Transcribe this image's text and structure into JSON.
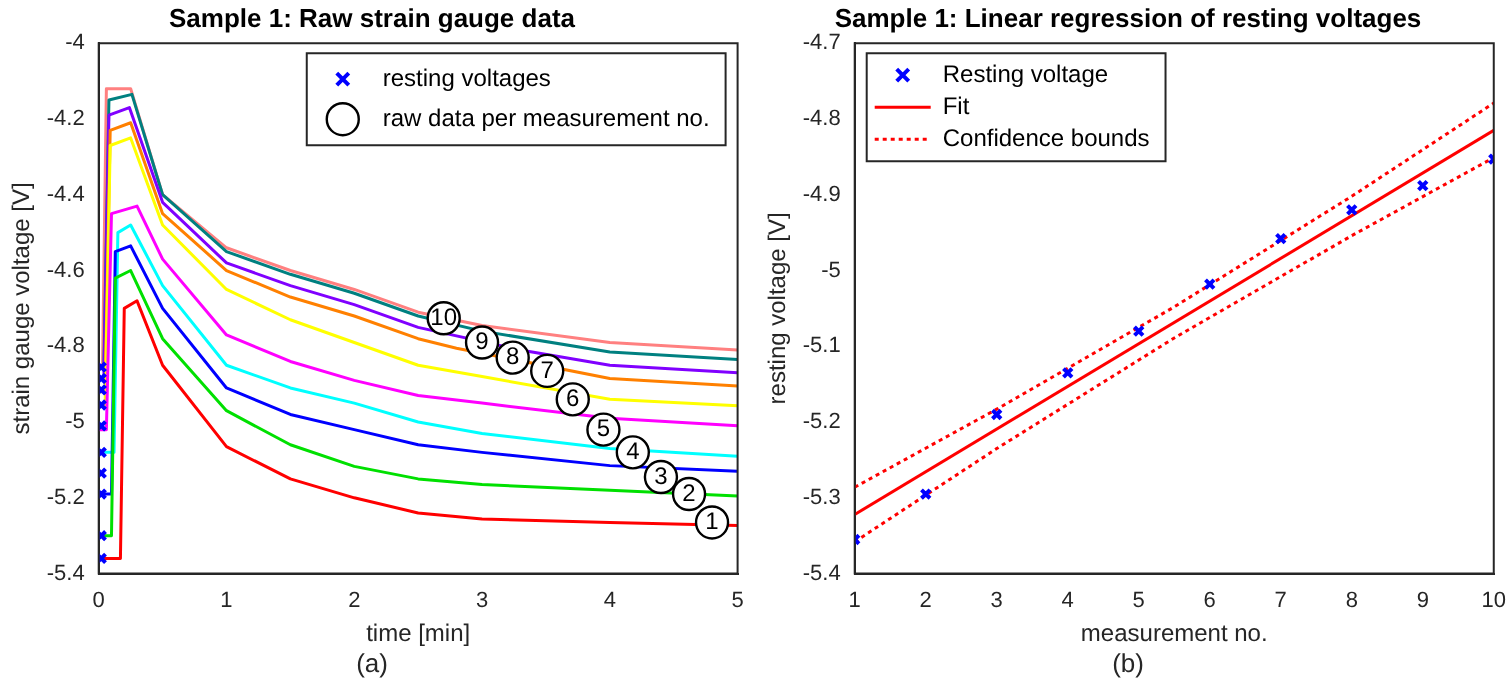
{
  "chart_data": [
    {
      "type": "line",
      "title": "Sample 1: Raw strain gauge data",
      "xlabel": "time [min]",
      "ylabel": "strain gauge voltage [V]",
      "xlim": [
        0,
        5
      ],
      "xticks": [
        0,
        1,
        2,
        3,
        4,
        5
      ],
      "ylim": [
        -5.4,
        -4
      ],
      "yticks": [
        -5.4,
        -5.2,
        -5,
        -4.8,
        -4.6,
        -4.4,
        -4.2,
        -4
      ],
      "grid": false,
      "legend": "top right",
      "series": [
        {
          "color": "#ff0000",
          "marker": "none",
          "x": [
            0,
            0.17,
            0.2,
            0.3,
            0.5,
            1,
            1.5,
            2,
            2.5,
            3,
            4,
            5
          ],
          "values": [
            -5.36,
            -5.36,
            -4.7,
            -4.68,
            -4.85,
            -5.065,
            -5.15,
            -5.2,
            -5.24,
            -5.256,
            -5.265,
            -5.273
          ]
        },
        {
          "color": "#00e000",
          "marker": "none",
          "x": [
            0,
            0.1,
            0.13,
            0.25,
            0.5,
            1,
            1.5,
            2,
            2.5,
            3,
            4,
            5
          ],
          "values": [
            -5.3,
            -5.3,
            -4.62,
            -4.6,
            -4.78,
            -4.97,
            -5.06,
            -5.117,
            -5.15,
            -5.165,
            -5.18,
            -5.195
          ]
        },
        {
          "color": "#0000ff",
          "marker": "none",
          "x": [
            0,
            0.1,
            0.13,
            0.25,
            0.5,
            1,
            1.5,
            2,
            2.5,
            3,
            4,
            5
          ],
          "values": [
            -5.19,
            -5.19,
            -4.55,
            -4.535,
            -4.7,
            -4.91,
            -4.98,
            -5.02,
            -5.06,
            -5.08,
            -5.115,
            -5.13
          ]
        },
        {
          "color": "#00ffff",
          "marker": "none",
          "x": [
            0,
            0.12,
            0.15,
            0.25,
            0.5,
            1,
            1.5,
            2,
            2.5,
            3,
            4,
            5
          ],
          "values": [
            -5.08,
            -5.08,
            -4.5,
            -4.48,
            -4.64,
            -4.85,
            -4.91,
            -4.95,
            -5,
            -5.03,
            -5.07,
            -5.09
          ]
        },
        {
          "color": "#ff00ff",
          "marker": "none",
          "x": [
            0,
            0.06,
            0.1,
            0.3,
            0.5,
            1,
            1.5,
            2,
            2.5,
            3,
            4,
            5
          ],
          "values": [
            -5.02,
            -5.02,
            -4.45,
            -4.43,
            -4.57,
            -4.77,
            -4.84,
            -4.89,
            -4.93,
            -4.95,
            -4.99,
            -5.01
          ]
        },
        {
          "color": "#ffff00",
          "marker": "none",
          "x": [
            0.05,
            0.09,
            0.25,
            0.5,
            1,
            1.5,
            2,
            2.5,
            3,
            4,
            5
          ],
          "values": [
            -4.96,
            -4.27,
            -4.25,
            -4.48,
            -4.65,
            -4.73,
            -4.79,
            -4.85,
            -4.88,
            -4.94,
            -4.957
          ]
        },
        {
          "color": "#ff8000",
          "marker": "none",
          "x": [
            0,
            0.05,
            0.09,
            0.25,
            0.5,
            1,
            1.5,
            2,
            2.5,
            2.8,
            4,
            5
          ],
          "values": [
            -4.92,
            -4.92,
            -4.23,
            -4.21,
            -4.45,
            -4.6,
            -4.67,
            -4.72,
            -4.78,
            -4.805,
            -4.885,
            -4.905
          ]
        },
        {
          "color": "#8000ff",
          "marker": "none",
          "x": [
            0.04,
            0.08,
            0.24,
            0.5,
            1,
            1.5,
            2,
            2.5,
            3.3,
            4,
            5
          ],
          "values": [
            -4.89,
            -4.19,
            -4.17,
            -4.42,
            -4.58,
            -4.64,
            -4.69,
            -4.75,
            -4.81,
            -4.85,
            -4.87
          ]
        },
        {
          "color": "#008080",
          "marker": "none",
          "x": [
            0.04,
            0.08,
            0.26,
            0.5,
            1,
            1.5,
            2,
            2.5,
            3,
            4,
            5
          ],
          "values": [
            -4.86,
            -4.15,
            -4.135,
            -4.4,
            -4.55,
            -4.61,
            -4.66,
            -4.72,
            -4.76,
            -4.815,
            -4.835
          ]
        },
        {
          "color": "#ff8080",
          "marker": "none",
          "x": [
            0,
            0.03,
            0.06,
            0.25,
            0.5,
            1,
            1.5,
            2,
            2.5,
            3,
            4,
            5
          ],
          "values": [
            -4.85,
            -4.85,
            -4.12,
            -4.12,
            -4.4,
            -4.54,
            -4.6,
            -4.65,
            -4.71,
            -4.745,
            -4.79,
            -4.81
          ]
        },
        {
          "type": "scatter",
          "name": "resting voltages",
          "color": "#0000ff",
          "marker": "cross",
          "x": [
            0.02,
            0.02,
            0.02,
            0.02,
            0.02,
            0.02,
            0.02,
            0.02,
            0.02,
            0.02
          ],
          "values": [
            -5.36,
            -5.3,
            -5.19,
            -5.135,
            -5.08,
            -5.01,
            -4.955,
            -4.915,
            -4.885,
            -4.855
          ]
        },
        {
          "type": "scatter",
          "name": "raw data per measurement no.",
          "color": "#000000",
          "marker": "circle",
          "x": [
            4.8,
            4.62,
            4.4,
            4.18,
            3.95,
            3.71,
            3.51,
            3.24,
            3,
            2.7
          ],
          "values": [
            -5.265,
            -5.19,
            -5.145,
            -5.08,
            -5.02,
            -4.94,
            -4.865,
            -4.83,
            -4.79,
            -4.726
          ]
        }
      ],
      "annotations": [
        "(a)",
        {
          "text": "1",
          "x": 4.8,
          "y": -5.265
        },
        {
          "text": "2",
          "x": 4.62,
          "y": -5.19
        },
        {
          "text": "3",
          "x": 4.4,
          "y": -5.145
        },
        {
          "text": "4",
          "x": 4.18,
          "y": -5.08
        },
        {
          "text": "5",
          "x": 3.95,
          "y": -5.02
        },
        {
          "text": "6",
          "x": 3.71,
          "y": -4.94
        },
        {
          "text": "7",
          "x": 3.51,
          "y": -4.865
        },
        {
          "text": "8",
          "x": 3.24,
          "y": -4.83
        },
        {
          "text": "9",
          "x": 3,
          "y": -4.79
        },
        {
          "text": "10",
          "x": 2.7,
          "y": -4.726
        }
      ]
    },
    {
      "type": "scatter",
      "title": "Sample 1: Linear regression of resting voltages",
      "xlabel": "measurement no.",
      "ylabel": "resting voltage [V]",
      "xlim": [
        1,
        10
      ],
      "xticks": [
        1,
        2,
        3,
        4,
        5,
        6,
        7,
        8,
        9,
        10
      ],
      "ylim": [
        -5.4,
        -4.7
      ],
      "yticks": [
        -5.4,
        -5.3,
        -5.2,
        -5.1,
        -5,
        -4.9,
        -4.8,
        -4.7
      ],
      "grid": false,
      "legend": "top left",
      "series": [
        {
          "name": "Resting voltage",
          "color": "#0000ff",
          "marker": "cross",
          "x": [
            1,
            2,
            3,
            4,
            5,
            6,
            7,
            8,
            9,
            10
          ],
          "values": [
            -5.355,
            -5.295,
            -5.19,
            -5.135,
            -5.08,
            -5.018,
            -4.958,
            -4.92,
            -4.888,
            -4.853
          ]
        },
        {
          "type": "line",
          "name": "Fit",
          "color": "#ff0000",
          "marker": "none",
          "line_style": "solid",
          "x": [
            1,
            10
          ],
          "values": [
            -5.322,
            -4.815
          ]
        },
        {
          "type": "line",
          "name": "Confidence bounds",
          "color": "#ff0000",
          "marker": "none",
          "line_style": "dotted",
          "x": [
            1,
            3,
            5.5,
            8,
            10
          ],
          "values": [
            -5.286,
            -5.183,
            -5.048,
            -4.902,
            -4.779
          ]
        },
        {
          "type": "line",
          "color": "#ff0000",
          "marker": "none",
          "line_style": "dotted",
          "x": [
            1,
            3,
            5.5,
            8,
            10
          ],
          "values": [
            -5.358,
            -5.235,
            -5.089,
            -4.954,
            -4.851
          ]
        }
      ],
      "annotations": [
        "(b)"
      ]
    }
  ]
}
